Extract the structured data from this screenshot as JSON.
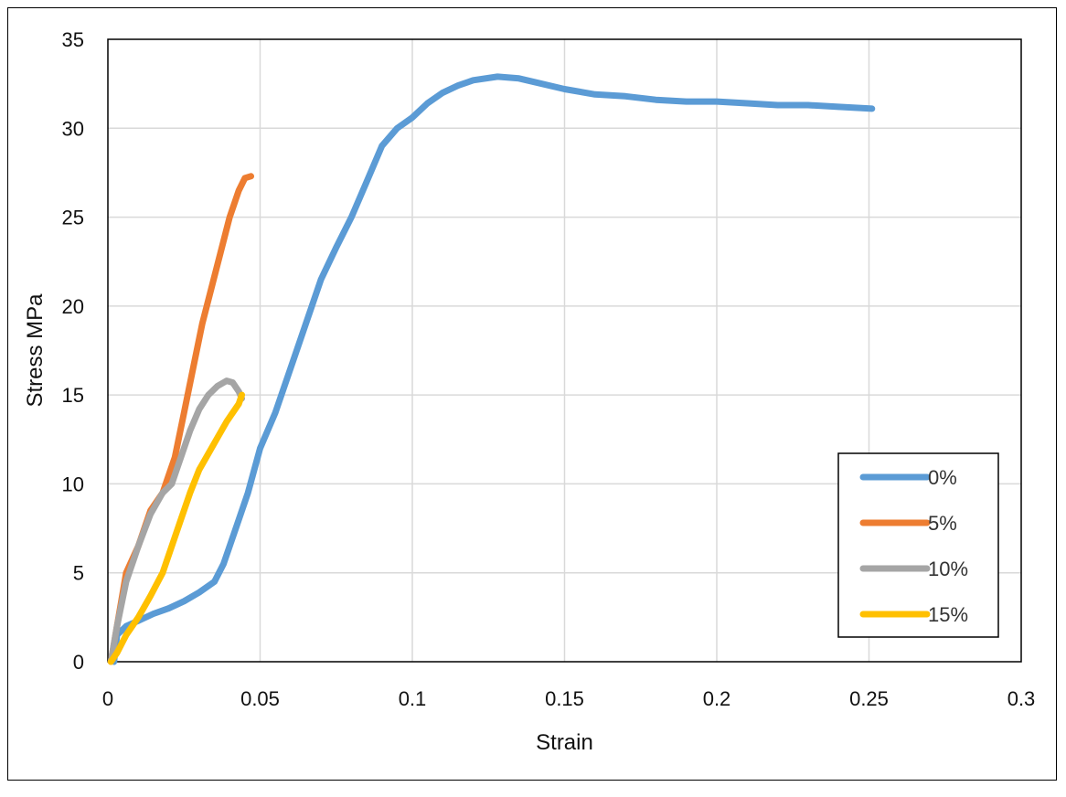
{
  "chart_data": {
    "type": "line",
    "title": "",
    "xlabel": "Strain",
    "ylabel": "Stress MPa",
    "xlim": [
      0,
      0.3
    ],
    "ylim": [
      0,
      35
    ],
    "xticks": [
      "0",
      "0.05",
      "0.1",
      "0.15",
      "0.2",
      "0.25",
      "0.3"
    ],
    "yticks": [
      "0",
      "5",
      "10",
      "15",
      "20",
      "25",
      "30",
      "35"
    ],
    "xtick_values": [
      0,
      0.05,
      0.1,
      0.15,
      0.2,
      0.25,
      0.3
    ],
    "ytick_values": [
      0,
      5,
      10,
      15,
      20,
      25,
      30,
      35
    ],
    "grid": true,
    "legend_position": "bottom-right",
    "series": [
      {
        "name": "0%",
        "color": "#5B9BD5",
        "points": [
          [
            0.002,
            0
          ],
          [
            0.003,
            1.5
          ],
          [
            0.006,
            2.0
          ],
          [
            0.01,
            2.3
          ],
          [
            0.015,
            2.7
          ],
          [
            0.02,
            3.0
          ],
          [
            0.025,
            3.4
          ],
          [
            0.03,
            3.9
          ],
          [
            0.035,
            4.5
          ],
          [
            0.038,
            5.5
          ],
          [
            0.042,
            7.5
          ],
          [
            0.046,
            9.5
          ],
          [
            0.05,
            12.0
          ],
          [
            0.055,
            14.0
          ],
          [
            0.06,
            16.5
          ],
          [
            0.065,
            19.0
          ],
          [
            0.07,
            21.5
          ],
          [
            0.075,
            23.3
          ],
          [
            0.08,
            25.0
          ],
          [
            0.085,
            27.0
          ],
          [
            0.09,
            29.0
          ],
          [
            0.095,
            30.0
          ],
          [
            0.1,
            30.6
          ],
          [
            0.105,
            31.4
          ],
          [
            0.11,
            32.0
          ],
          [
            0.115,
            32.4
          ],
          [
            0.12,
            32.7
          ],
          [
            0.128,
            32.9
          ],
          [
            0.135,
            32.8
          ],
          [
            0.14,
            32.6
          ],
          [
            0.15,
            32.2
          ],
          [
            0.16,
            31.9
          ],
          [
            0.17,
            31.8
          ],
          [
            0.18,
            31.6
          ],
          [
            0.19,
            31.5
          ],
          [
            0.2,
            31.5
          ],
          [
            0.21,
            31.4
          ],
          [
            0.22,
            31.3
          ],
          [
            0.23,
            31.3
          ],
          [
            0.24,
            31.2
          ],
          [
            0.251,
            31.1
          ]
        ]
      },
      {
        "name": "5%",
        "color": "#ED7D31",
        "points": [
          [
            0.001,
            0
          ],
          [
            0.003,
            2.0
          ],
          [
            0.006,
            5.0
          ],
          [
            0.01,
            6.5
          ],
          [
            0.014,
            8.5
          ],
          [
            0.018,
            9.5
          ],
          [
            0.022,
            11.5
          ],
          [
            0.025,
            14.0
          ],
          [
            0.028,
            16.5
          ],
          [
            0.031,
            19.0
          ],
          [
            0.034,
            21.0
          ],
          [
            0.037,
            23.0
          ],
          [
            0.04,
            25.0
          ],
          [
            0.043,
            26.5
          ],
          [
            0.045,
            27.2
          ],
          [
            0.047,
            27.3
          ]
        ]
      },
      {
        "name": "10%",
        "color": "#A5A5A5",
        "points": [
          [
            0.001,
            0
          ],
          [
            0.003,
            2.0
          ],
          [
            0.006,
            4.5
          ],
          [
            0.01,
            6.5
          ],
          [
            0.014,
            8.3
          ],
          [
            0.018,
            9.5
          ],
          [
            0.021,
            10.0
          ],
          [
            0.024,
            11.5
          ],
          [
            0.027,
            13.0
          ],
          [
            0.03,
            14.2
          ],
          [
            0.033,
            15.0
          ],
          [
            0.036,
            15.5
          ],
          [
            0.039,
            15.8
          ],
          [
            0.041,
            15.7
          ],
          [
            0.043,
            15.2
          ],
          [
            0.044,
            14.8
          ]
        ]
      },
      {
        "name": "15%",
        "color": "#FFC000",
        "points": [
          [
            0.001,
            0
          ],
          [
            0.003,
            0.5
          ],
          [
            0.006,
            1.5
          ],
          [
            0.01,
            2.5
          ],
          [
            0.014,
            3.7
          ],
          [
            0.018,
            5.0
          ],
          [
            0.021,
            6.5
          ],
          [
            0.024,
            8.0
          ],
          [
            0.027,
            9.5
          ],
          [
            0.03,
            10.8
          ],
          [
            0.033,
            11.7
          ],
          [
            0.036,
            12.6
          ],
          [
            0.039,
            13.5
          ],
          [
            0.041,
            14.0
          ],
          [
            0.043,
            14.5
          ],
          [
            0.044,
            15.0
          ]
        ]
      }
    ]
  }
}
